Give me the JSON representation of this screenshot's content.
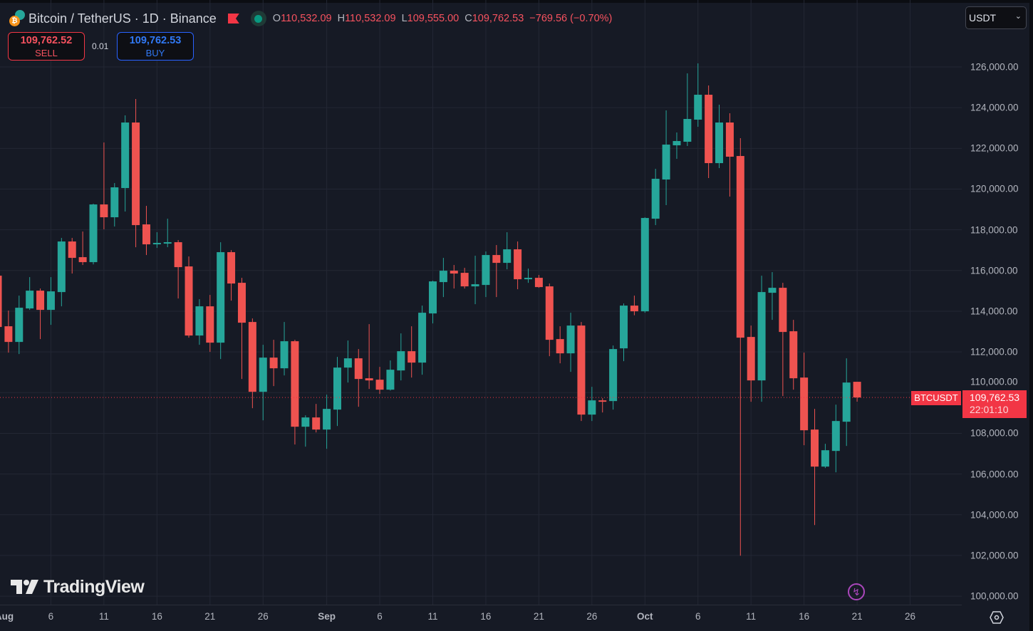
{
  "header": {
    "title": "Bitcoin / TetherUS · 1D · Binance",
    "ohlc": {
      "o_label": "O",
      "o": "110,532.09",
      "h_label": "H",
      "h": "110,532.09",
      "l_label": "L",
      "l": "109,555.00",
      "c_label": "C",
      "c": "109,762.53",
      "change": "−769.56 (−0.70%)"
    }
  },
  "trade": {
    "sell_price": "109,762.52",
    "sell_label": "SELL",
    "spread": "0.01",
    "buy_price": "109,762.53",
    "buy_label": "BUY"
  },
  "currency_select": {
    "value": "USDT"
  },
  "current_price": {
    "symbol": "BTCUSDT",
    "price": "109,762.53",
    "countdown": "22:01:10",
    "value": 109762.53
  },
  "branding": {
    "logo": "TradingView"
  },
  "icons": {
    "alert": "lightning-icon",
    "settings": "hexagon-settings-icon",
    "flag": "flag-icon",
    "market_status": "market-open-dot-icon"
  },
  "colors": {
    "up": "#26a69a",
    "down": "#ef5350",
    "background": "#161a25",
    "grid": "#232734",
    "current_price": "#f23645"
  },
  "chart_data": {
    "type": "candlestick",
    "interval": "1D",
    "ylim": [
      100000,
      126000
    ],
    "y_ticks": [
      "126,000.00",
      "124,000.00",
      "122,000.00",
      "120,000.00",
      "118,000.00",
      "116,000.00",
      "114,000.00",
      "112,000.00",
      "110,000.00",
      "108,000.00",
      "106,000.00",
      "104,000.00",
      "102,000.00",
      "100,000.00"
    ],
    "x_ticks": [
      {
        "label": "Aug",
        "date": "Aug 1",
        "bold": true
      },
      {
        "label": "6",
        "date": "Aug 6"
      },
      {
        "label": "11",
        "date": "Aug 11"
      },
      {
        "label": "16",
        "date": "Aug 16"
      },
      {
        "label": "21",
        "date": "Aug 21"
      },
      {
        "label": "26",
        "date": "Aug 26"
      },
      {
        "label": "Sep",
        "date": "Sep 1",
        "bold": true
      },
      {
        "label": "6",
        "date": "Sep 6"
      },
      {
        "label": "11",
        "date": "Sep 11"
      },
      {
        "label": "16",
        "date": "Sep 16"
      },
      {
        "label": "21",
        "date": "Sep 21"
      },
      {
        "label": "26",
        "date": "Sep 26"
      },
      {
        "label": "Oct",
        "date": "Oct 1",
        "bold": true
      },
      {
        "label": "6",
        "date": "Oct 6"
      },
      {
        "label": "11",
        "date": "Oct 11"
      },
      {
        "label": "16",
        "date": "Oct 16"
      },
      {
        "label": "21",
        "date": "Oct 21"
      },
      {
        "label": "26",
        "date": "Oct 26"
      }
    ],
    "grid": true,
    "columns": [
      "date",
      "open",
      "high",
      "low",
      "close"
    ],
    "candles": [
      [
        "Aug 1",
        115745,
        116000,
        112900,
        113225
      ],
      [
        "Aug 2",
        113260,
        114030,
        111965,
        112490
      ],
      [
        "Aug 3",
        112490,
        114765,
        111895,
        114170
      ],
      [
        "Aug 4",
        114135,
        115675,
        114065,
        115010
      ],
      [
        "Aug 5",
        115010,
        115115,
        112630,
        114065
      ],
      [
        "Aug 6",
        114065,
        115675,
        113330,
        114975
      ],
      [
        "Aug 7",
        114940,
        117600,
        114240,
        117425
      ],
      [
        "Aug 8",
        117425,
        117600,
        115850,
        116620
      ],
      [
        "Aug 9",
        116655,
        117915,
        116270,
        116410
      ],
      [
        "Aug 10",
        116410,
        119280,
        116300,
        119245
      ],
      [
        "Aug 11",
        119245,
        122290,
        118020,
        118615
      ],
      [
        "Aug 12",
        118615,
        120295,
        118160,
        120085
      ],
      [
        "Aug 13",
        120050,
        123620,
        118895,
        123270
      ],
      [
        "Aug 14",
        123270,
        124425,
        117145,
        118230
      ],
      [
        "Aug 15",
        118265,
        119175,
        116760,
        117285
      ],
      [
        "Aug 16",
        117285,
        117880,
        117110,
        117355
      ],
      [
        "Aug 17",
        117355,
        118545,
        117145,
        117390
      ],
      [
        "Aug 18",
        117390,
        117495,
        114625,
        116165
      ],
      [
        "Aug 19",
        116200,
        116690,
        112700,
        112805
      ],
      [
        "Aug 20",
        112805,
        114590,
        112350,
        114240
      ],
      [
        "Aug 21",
        114240,
        114800,
        112000,
        112455
      ],
      [
        "Aug 22",
        112455,
        117390,
        111650,
        116900
      ],
      [
        "Aug 23",
        116900,
        117000,
        114520,
        115360
      ],
      [
        "Aug 24",
        115395,
        115640,
        110670,
        113435
      ],
      [
        "Aug 25",
        113470,
        113645,
        109235,
        110040
      ],
      [
        "Aug 26",
        110040,
        112350,
        108640,
        111720
      ],
      [
        "Aug 27",
        111720,
        112595,
        110320,
        111195
      ],
      [
        "Aug 28",
        111195,
        113470,
        110845,
        112525
      ],
      [
        "Aug 29",
        112525,
        112595,
        107450,
        108325
      ],
      [
        "Aug 30",
        108325,
        108885,
        107345,
        108780
      ],
      [
        "Aug 31",
        108780,
        109445,
        108045,
        108185
      ],
      [
        "Sep 1",
        108185,
        109900,
        107240,
        109200
      ],
      [
        "Sep 2",
        109165,
        111755,
        108360,
        111230
      ],
      [
        "Sep 3",
        111230,
        112560,
        110495,
        111685
      ],
      [
        "Sep 4",
        111685,
        112140,
        109305,
        110670
      ],
      [
        "Sep 5",
        110705,
        113365,
        110180,
        110600
      ],
      [
        "Sep 6",
        110635,
        111265,
        109935,
        110145
      ],
      [
        "Sep 7",
        110145,
        111580,
        110100,
        111125
      ],
      [
        "Sep 8",
        111090,
        112910,
        110600,
        112035
      ],
      [
        "Sep 9",
        112035,
        113260,
        110740,
        111475
      ],
      [
        "Sep 10",
        111475,
        114275,
        110880,
        113925
      ],
      [
        "Sep 11",
        113890,
        115500,
        113400,
        115465
      ],
      [
        "Sep 12",
        115430,
        116620,
        114695,
        115990
      ],
      [
        "Sep 13",
        115990,
        116270,
        115115,
        115850
      ],
      [
        "Sep 14",
        115885,
        116130,
        115115,
        115220
      ],
      [
        "Sep 15",
        115220,
        116725,
        114345,
        115325
      ],
      [
        "Sep 16",
        115290,
        116935,
        114695,
        116760
      ],
      [
        "Sep 17",
        116760,
        117250,
        114695,
        116375
      ],
      [
        "Sep 18",
        116375,
        117880,
        116060,
        117040
      ],
      [
        "Sep 19",
        117040,
        117425,
        115080,
        115570
      ],
      [
        "Sep 20",
        115570,
        116095,
        115395,
        115640
      ],
      [
        "Sep 21",
        115640,
        115780,
        115150,
        115185
      ],
      [
        "Sep 22",
        115220,
        115360,
        111790,
        112595
      ],
      [
        "Sep 23",
        112630,
        113260,
        111440,
        111930
      ],
      [
        "Sep 24",
        111930,
        113925,
        111020,
        113295
      ],
      [
        "Sep 25",
        113295,
        113470,
        108605,
        108920
      ],
      [
        "Sep 26",
        108920,
        110285,
        108605,
        109620
      ],
      [
        "Sep 27",
        109620,
        109725,
        109025,
        109585
      ],
      [
        "Sep 28",
        109585,
        112315,
        109165,
        112140
      ],
      [
        "Sep 29",
        112175,
        114380,
        111545,
        114275
      ],
      [
        "Sep 30",
        114275,
        114765,
        113800,
        113995
      ],
      [
        "Oct 1",
        113995,
        118615,
        113925,
        118580
      ],
      [
        "Oct 2",
        118545,
        120995,
        118230,
        120505
      ],
      [
        "Oct 3",
        120470,
        123865,
        119210,
        122185
      ],
      [
        "Oct 4",
        122150,
        122780,
        121485,
        122360
      ],
      [
        "Oct 5",
        122325,
        125685,
        122115,
        123445
      ],
      [
        "Oct 6",
        123410,
        126175,
        123060,
        124635
      ],
      [
        "Oct 7",
        124635,
        125090,
        120540,
        121275
      ],
      [
        "Oct 8",
        121275,
        124145,
        121030,
        123270
      ],
      [
        "Oct 9",
        123270,
        123725,
        119630,
        121590
      ],
      [
        "Oct 10",
        121625,
        122500,
        101990,
        112700
      ],
      [
        "Oct 11",
        112735,
        113295,
        109550,
        110600
      ],
      [
        "Oct 12",
        110600,
        115745,
        109550,
        114940
      ],
      [
        "Oct 13",
        114905,
        115920,
        113575,
        115150
      ],
      [
        "Oct 14",
        115150,
        115395,
        109830,
        112980
      ],
      [
        "Oct 15",
        113015,
        113575,
        110145,
        110705
      ],
      [
        "Oct 16",
        110740,
        111965,
        107415,
        108150
      ],
      [
        "Oct 17",
        108185,
        109200,
        103495,
        106365
      ],
      [
        "Oct 18",
        106365,
        107485,
        106295,
        107170
      ],
      [
        "Oct 19",
        107135,
        109410,
        106085,
        108605
      ],
      [
        "Oct 20",
        108570,
        111685,
        107380,
        110495
      ],
      [
        "Oct 21",
        110532.09,
        110532.09,
        109555.0,
        109762.53
      ]
    ]
  }
}
